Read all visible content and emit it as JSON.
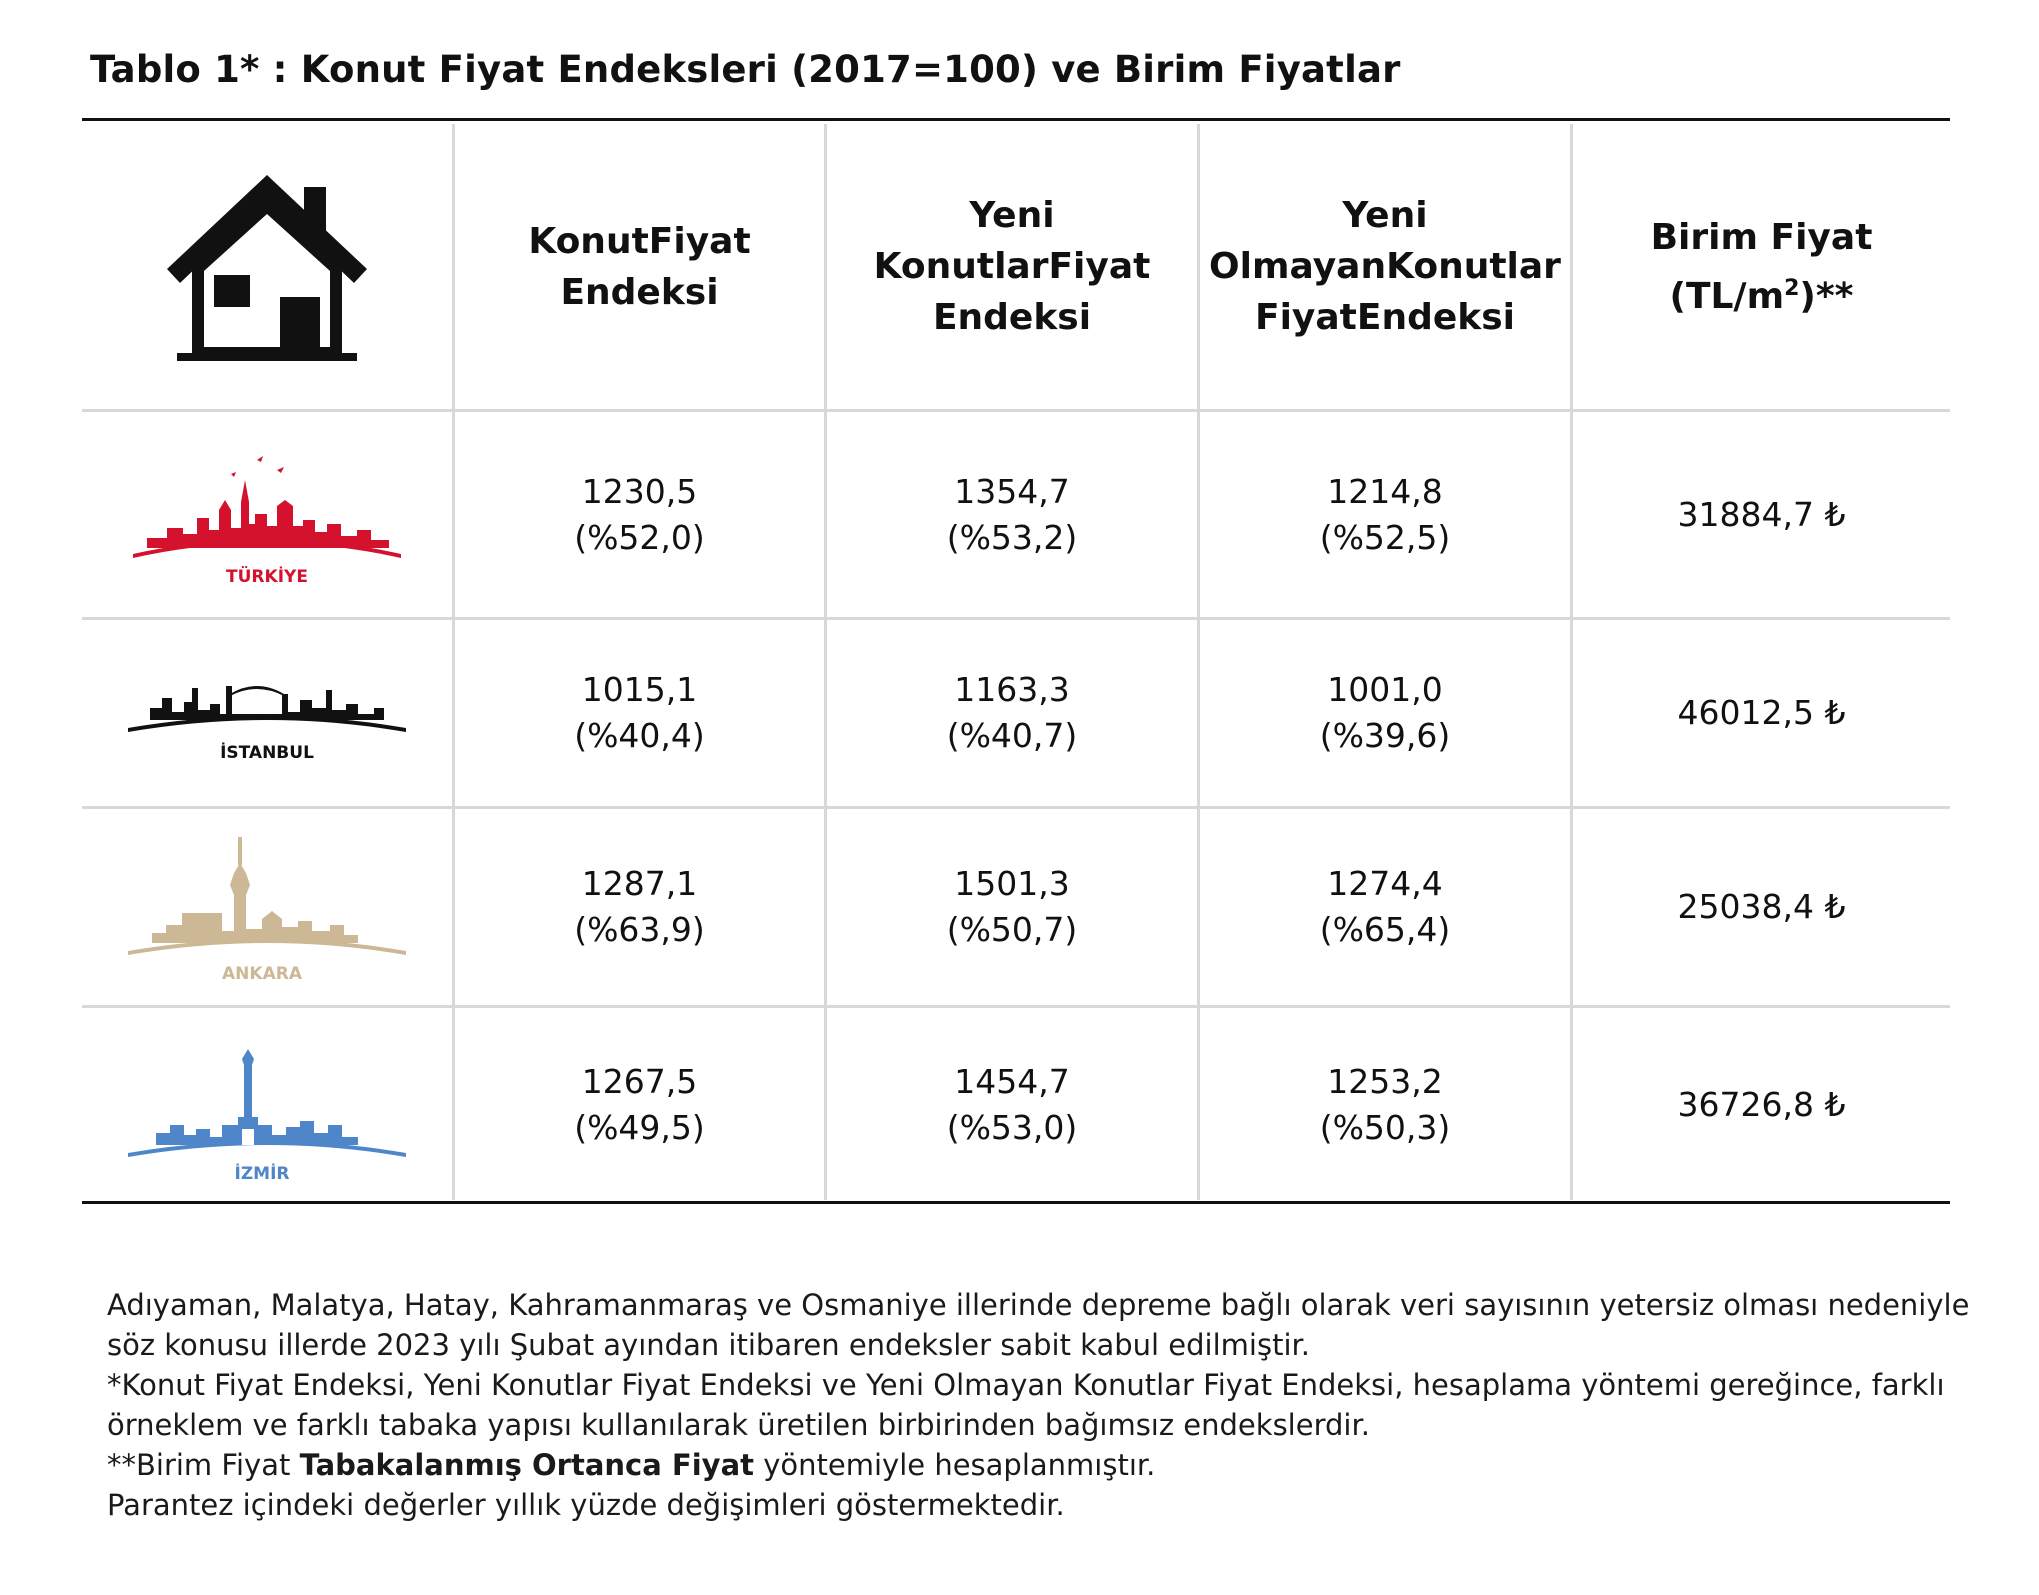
{
  "title": "Tablo 1* : Konut Fiyat Endeksleri (2017=100) ve Birim Fiyatlar",
  "header": {
    "icon": "house-icon",
    "col1": [
      "Konut",
      "Fiyat Endeksi"
    ],
    "col2": [
      "Yeni Konutlar",
      "Fiyat Endeksi"
    ],
    "col3": [
      "Yeni Olmayan",
      "Konutlar Fiyat",
      "Endeksi"
    ],
    "col4_line1": "Birim Fiyat",
    "col4_pre": "(TL/m",
    "col4_sup": "2",
    "col4_post": ")**"
  },
  "rows": [
    {
      "city": "TÜRKİYE",
      "color": "#d4122e",
      "konut": "1230,5",
      "konut_chg": "(%52,0)",
      "yeni": "1354,7",
      "yeni_chg": "(%53,2)",
      "yeni_olmayan": "1214,8",
      "yeni_olmayan_chg": "(%52,5)",
      "birim": "31884,7 ₺"
    },
    {
      "city": "İSTANBUL",
      "color": "#111111",
      "konut": "1015,1",
      "konut_chg": "(%40,4)",
      "yeni": "1163,3",
      "yeni_chg": "(%40,7)",
      "yeni_olmayan": "1001,0",
      "yeni_olmayan_chg": "(%39,6)",
      "birim": "46012,5 ₺"
    },
    {
      "city": "ANKARA",
      "color": "#cdb895",
      "konut": "1287,1",
      "konut_chg": "(%63,9)",
      "yeni": "1501,3",
      "yeni_chg": "(%50,7)",
      "yeni_olmayan": "1274,4",
      "yeni_olmayan_chg": "(%65,4)",
      "birim": "25038,4 ₺"
    },
    {
      "city": "İZMİR",
      "color": "#4f86c9",
      "konut": "1267,5",
      "konut_chg": "(%49,5)",
      "yeni": "1454,7",
      "yeni_chg": "(%53,0)",
      "yeni_olmayan": "1253,2",
      "yeni_olmayan_chg": "(%50,3)",
      "birim": "36726,8 ₺"
    }
  ],
  "notes": {
    "n1": "Adıyaman, Malatya, Hatay, Kahramanmaraş ve Osmaniye illerinde depreme bağlı olarak veri sayısının yetersiz olması nedeniyle",
    "n2": "söz konusu illerde 2023 yılı Şubat ayından itibaren endeksler sabit kabul edilmiştir.",
    "n3": "*Konut Fiyat Endeksi, Yeni Konutlar Fiyat Endeksi ve Yeni Olmayan Konutlar Fiyat Endeksi, hesaplama yöntemi gereğince, farklı",
    "n4": "örneklem ve farklı tabaka yapısı kullanılarak üretilen birbirinden bağımsız endekslerdir.",
    "n5_pre": "**Birim Fiyat ",
    "n5_bold": "Tabakalanmış Ortanca Fiyat",
    "n5_post": " yöntemiyle hesaplanmıştır.",
    "n6": "Parantez içindeki değerler yıllık yüzde değişimleri göstermektedir."
  }
}
